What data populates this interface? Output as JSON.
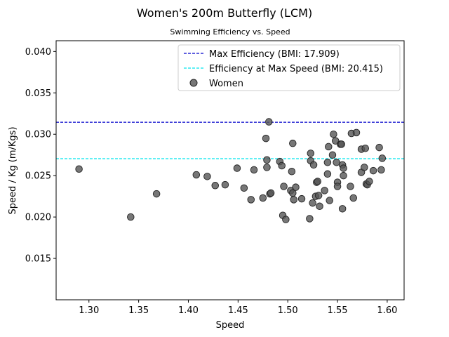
{
  "chart_data": {
    "type": "scatter",
    "title": "Women's 200m Butterfly (LCM)",
    "subtitle": "Swimming Efficiency vs. Speed",
    "xlabel": "Speed",
    "ylabel": "Speed / Kg (m/Kgs)",
    "xlim": [
      1.267,
      1.617
    ],
    "ylim": [
      0.01,
      0.0413
    ],
    "xticks": [
      "1.30",
      "1.35",
      "1.40",
      "1.45",
      "1.50",
      "1.55",
      "1.60"
    ],
    "yticks": [
      "0.015",
      "0.020",
      "0.025",
      "0.030",
      "0.035",
      "0.040"
    ],
    "grid": false,
    "legend_position": "top-right",
    "hlines": [
      {
        "label": "Max Efficiency (BMI: 17.909)",
        "y": 0.03145,
        "color": "#0000cc",
        "style": "dashed"
      },
      {
        "label": "Efficiency at Max Speed (BMI: 20.415)",
        "y": 0.02705,
        "color": "#00e5ee",
        "style": "dashed"
      }
    ],
    "series": [
      {
        "name": "Women",
        "color": "#555555",
        "points": [
          [
            1.29,
            0.0258
          ],
          [
            1.342,
            0.02
          ],
          [
            1.368,
            0.0228
          ],
          [
            1.408,
            0.0251
          ],
          [
            1.419,
            0.0249
          ],
          [
            1.427,
            0.0238
          ],
          [
            1.437,
            0.0239
          ],
          [
            1.449,
            0.0259
          ],
          [
            1.456,
            0.0235
          ],
          [
            1.463,
            0.0221
          ],
          [
            1.466,
            0.0257
          ],
          [
            1.475,
            0.0223
          ],
          [
            1.478,
            0.0295
          ],
          [
            1.479,
            0.0269
          ],
          [
            1.479,
            0.026
          ],
          [
            1.481,
            0.0315
          ],
          [
            1.482,
            0.0228
          ],
          [
            1.483,
            0.0229
          ],
          [
            1.492,
            0.0267
          ],
          [
            1.494,
            0.0262
          ],
          [
            1.495,
            0.0202
          ],
          [
            1.496,
            0.0237
          ],
          [
            1.498,
            0.0197
          ],
          [
            1.503,
            0.0232
          ],
          [
            1.504,
            0.0255
          ],
          [
            1.505,
            0.0289
          ],
          [
            1.505,
            0.0229
          ],
          [
            1.506,
            0.0221
          ],
          [
            1.508,
            0.0236
          ],
          [
            1.514,
            0.0222
          ],
          [
            1.522,
            0.0198
          ],
          [
            1.523,
            0.0277
          ],
          [
            1.523,
            0.0268
          ],
          [
            1.525,
            0.0217
          ],
          [
            1.526,
            0.0263
          ],
          [
            1.528,
            0.0225
          ],
          [
            1.529,
            0.0242
          ],
          [
            1.53,
            0.0243
          ],
          [
            1.531,
            0.0226
          ],
          [
            1.532,
            0.0213
          ],
          [
            1.537,
            0.0232
          ],
          [
            1.54,
            0.0266
          ],
          [
            1.54,
            0.0252
          ],
          [
            1.541,
            0.0285
          ],
          [
            1.542,
            0.022
          ],
          [
            1.545,
            0.0275
          ],
          [
            1.546,
            0.03
          ],
          [
            1.548,
            0.0292
          ],
          [
            1.549,
            0.0266
          ],
          [
            1.55,
            0.0242
          ],
          [
            1.55,
            0.0237
          ],
          [
            1.553,
            0.0288
          ],
          [
            1.554,
            0.0288
          ],
          [
            1.555,
            0.021
          ],
          [
            1.555,
            0.0263
          ],
          [
            1.556,
            0.0259
          ],
          [
            1.556,
            0.025
          ],
          [
            1.563,
            0.0237
          ],
          [
            1.564,
            0.0301
          ],
          [
            1.566,
            0.0223
          ],
          [
            1.569,
            0.0302
          ],
          [
            1.574,
            0.0282
          ],
          [
            1.574,
            0.0254
          ],
          [
            1.577,
            0.026
          ],
          [
            1.578,
            0.0283
          ],
          [
            1.579,
            0.024
          ],
          [
            1.58,
            0.0239
          ],
          [
            1.582,
            0.0243
          ],
          [
            1.586,
            0.0256
          ],
          [
            1.592,
            0.0284
          ],
          [
            1.594,
            0.0257
          ],
          [
            1.595,
            0.0271
          ]
        ]
      }
    ]
  }
}
